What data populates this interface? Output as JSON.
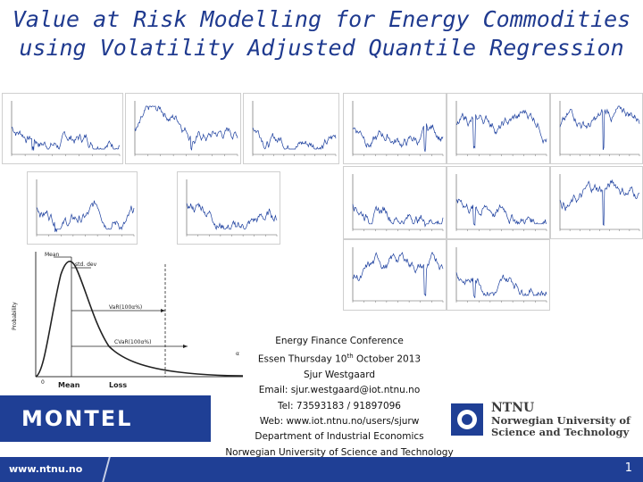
{
  "title": {
    "line1": "Value at Risk Modelling for Energy Commodities",
    "line2": "using Volatility Adjusted Quantile Regression"
  },
  "colors": {
    "brand_blue": "#1f3f95",
    "title_blue": "#1f3a8f",
    "series_blue": "#1c3f9e"
  },
  "distribution": {
    "ylabel": "Probability",
    "labels": {
      "mean": "Mean",
      "std": "std. dev",
      "var": "VaR(100α%)",
      "cvar": "CVaR(100α%)",
      "x_mean": "Mean",
      "x_loss": "Loss",
      "x_zero": "0",
      "x_alpha": "α"
    }
  },
  "info": {
    "line1": "Energy Finance Conference",
    "line2_pre": "Essen Thursday 10",
    "line2_sup": "th",
    "line2_post": " October 2013",
    "line3": "Sjur Westgaard",
    "line4": "Email: sjur.westgaard@iot.ntnu.no",
    "line5": "Tel: 73593183 / 91897096",
    "line6": "Web: www.iot.ntnu.no/users/sjurw",
    "line7": "Department of Industrial Economics",
    "line8": "Norwegian University of Science and Technology"
  },
  "montel": {
    "label": "MONTEL"
  },
  "ntnu": {
    "name": "NTNU",
    "line1": "Norwegian University of",
    "line2": "Science and Technology"
  },
  "footer": {
    "url": "www.ntnu.no",
    "page": "1"
  }
}
